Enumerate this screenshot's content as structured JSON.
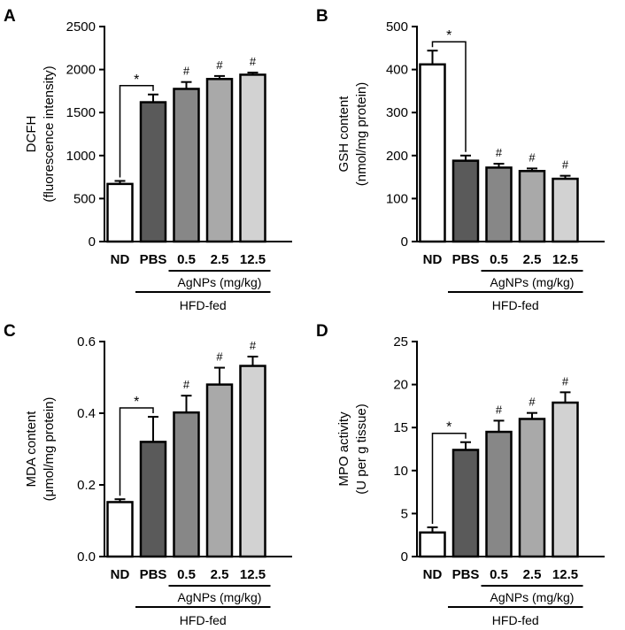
{
  "colors": {
    "ND": "#ffffff",
    "PBS": "#5a5a5a",
    "d05": "#878787",
    "d25": "#a9a9a9",
    "d125": "#d2d2d2",
    "stroke": "#000000"
  },
  "common": {
    "categories": [
      "ND",
      "PBS",
      "0.5",
      "2.5",
      "12.5"
    ],
    "agnps_label": "AgNPs (mg/kg)",
    "hfd_label": "HFD-fed",
    "star": "*",
    "hash": "#"
  },
  "chart_data": [
    {
      "panel": "A",
      "type": "bar",
      "ylabel_line1": "DCFH",
      "ylabel_line2": "(fluorescence intensity)",
      "ylim": [
        0,
        2500
      ],
      "yticks": [
        0,
        500,
        1000,
        1500,
        2000,
        2500
      ],
      "categories": [
        "ND",
        "PBS",
        "0.5",
        "2.5",
        "12.5"
      ],
      "values": [
        670,
        1620,
        1775,
        1890,
        1940
      ],
      "errors": [
        35,
        90,
        80,
        35,
        25
      ],
      "star_between": [
        0,
        1
      ],
      "hash_on": [
        2,
        3,
        4
      ]
    },
    {
      "panel": "B",
      "type": "bar",
      "ylabel_line1": "GSH content",
      "ylabel_line2": "(nmol/mg protein)",
      "ylim": [
        0,
        500
      ],
      "yticks": [
        0,
        100,
        200,
        300,
        400,
        500
      ],
      "categories": [
        "ND",
        "PBS",
        "0.5",
        "2.5",
        "12.5"
      ],
      "values": [
        412,
        188,
        172,
        164,
        146
      ],
      "errors": [
        32,
        12,
        9,
        6,
        7
      ],
      "star_between": [
        0,
        1
      ],
      "hash_on": [
        2,
        3,
        4
      ]
    },
    {
      "panel": "C",
      "type": "bar",
      "ylabel_line1": "MDA content",
      "ylabel_line2": "(μmol/mg protein)",
      "ylim": [
        0,
        0.6
      ],
      "yticks": [
        0.0,
        0.2,
        0.4,
        0.6
      ],
      "tick_decimals": 1,
      "categories": [
        "ND",
        "PBS",
        "0.5",
        "2.5",
        "12.5"
      ],
      "values": [
        0.152,
        0.32,
        0.402,
        0.48,
        0.532
      ],
      "errors": [
        0.008,
        0.07,
        0.047,
        0.047,
        0.026
      ],
      "star_between": [
        0,
        1
      ],
      "hash_on": [
        2,
        3,
        4
      ]
    },
    {
      "panel": "D",
      "type": "bar",
      "ylabel_line1": "MPO activity",
      "ylabel_line2": "(U per g tissue)",
      "ylim": [
        0,
        25
      ],
      "yticks": [
        0,
        5,
        10,
        15,
        20,
        25
      ],
      "categories": [
        "ND",
        "PBS",
        "0.5",
        "2.5",
        "12.5"
      ],
      "values": [
        2.8,
        12.4,
        14.5,
        16.0,
        17.9
      ],
      "errors": [
        0.6,
        0.9,
        1.3,
        0.7,
        1.2
      ],
      "star_between": [
        0,
        1
      ],
      "hash_on": [
        2,
        3,
        4
      ]
    }
  ]
}
